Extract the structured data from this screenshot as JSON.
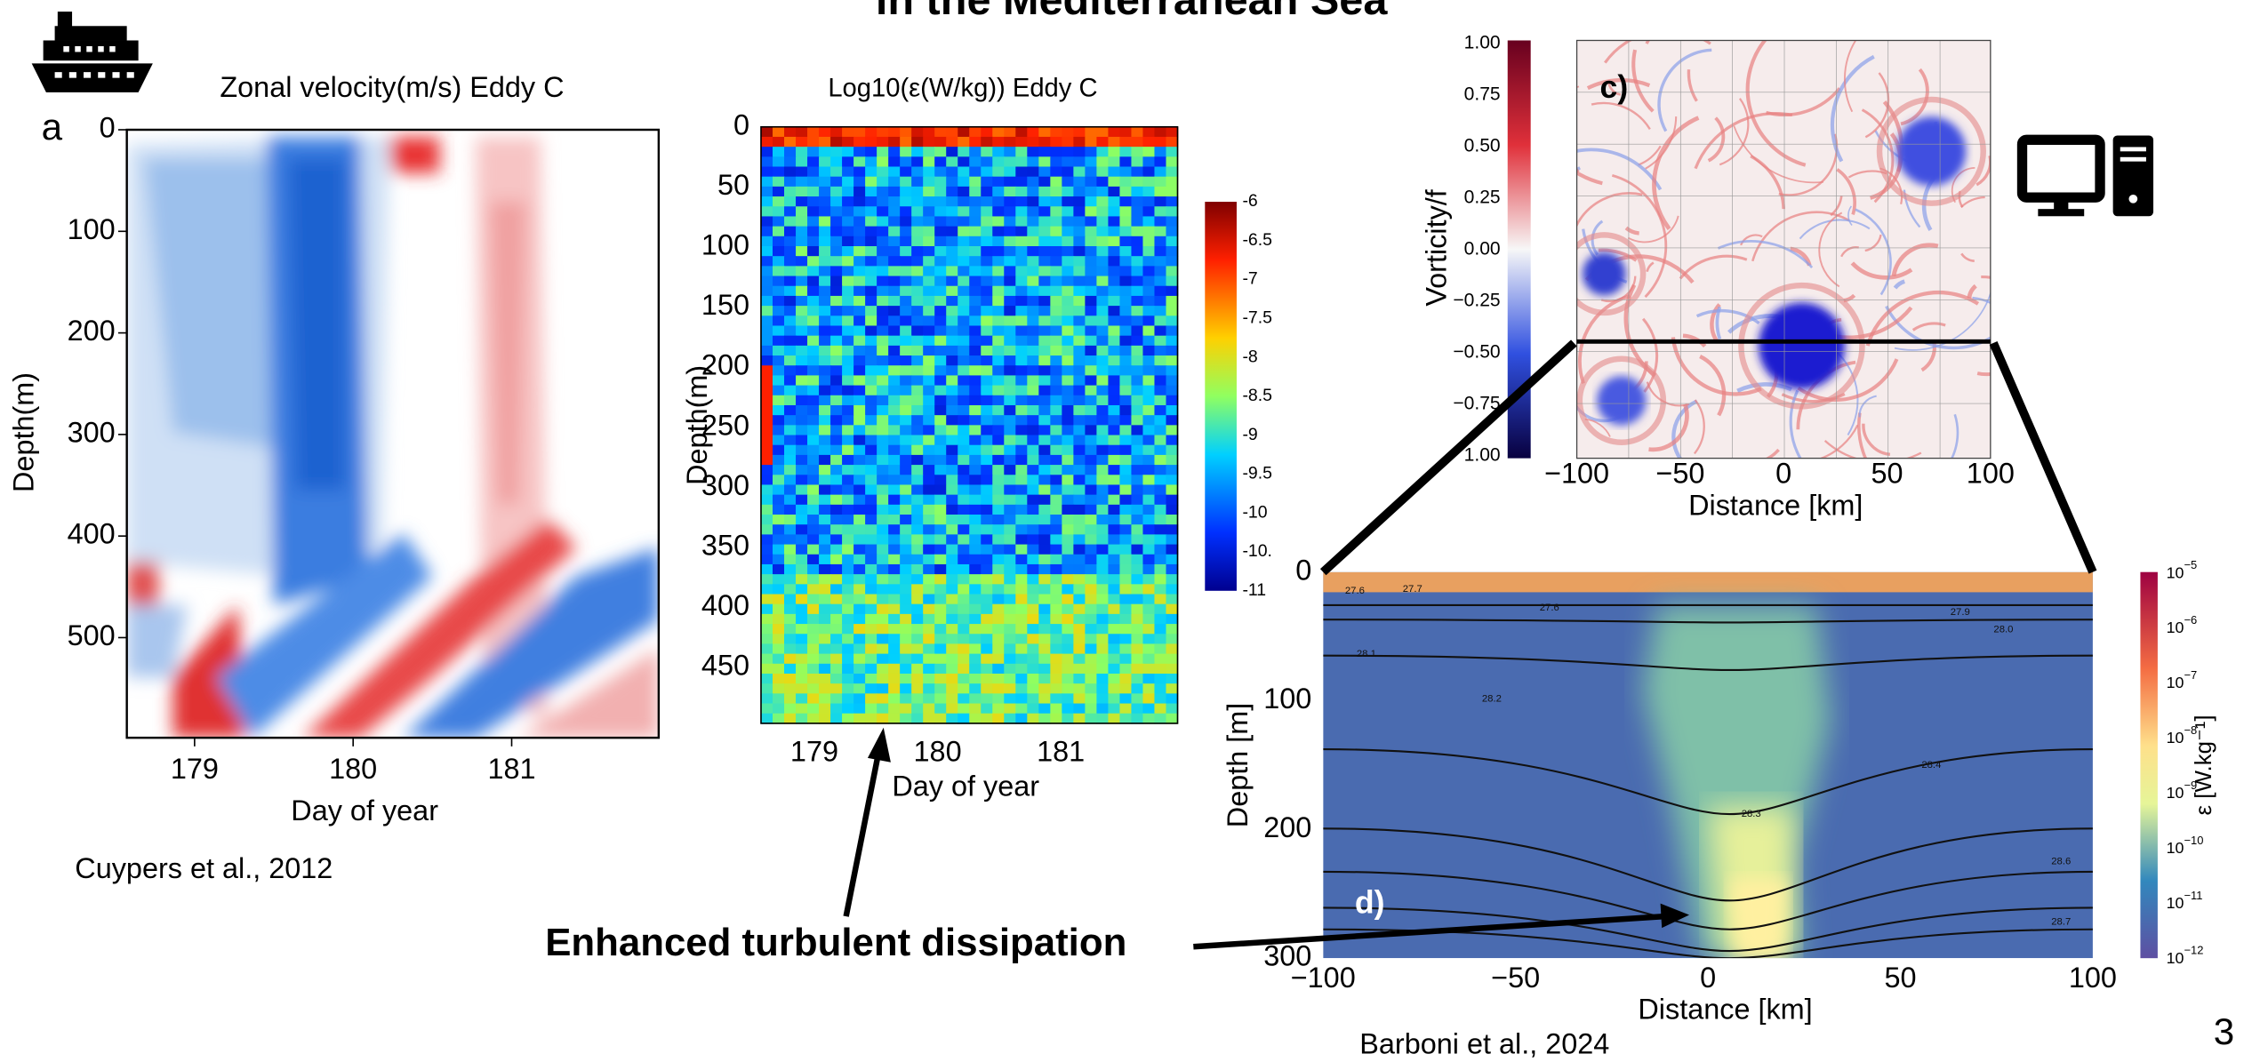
{
  "title": "in the Mediterranean Sea",
  "panel_a": {
    "label": "a",
    "title": "Zonal velocity(m/s) Eddy C",
    "y_label": "Depth(m)",
    "x_label": "Day of year",
    "y_ticks": [
      "0",
      "100",
      "200",
      "300",
      "400",
      "500"
    ],
    "x_ticks": [
      "179",
      "180",
      "181"
    ],
    "citation": "Cuypers et al., 2012"
  },
  "panel_b": {
    "title": "Log10(ε(W/kg)) Eddy C",
    "y_label": "Depth(m)",
    "x_label": "Day of year",
    "y_ticks": [
      "0",
      "50",
      "100",
      "150",
      "200",
      "250",
      "300",
      "350",
      "400",
      "450"
    ],
    "x_ticks": [
      "179",
      "180",
      "181"
    ],
    "colorbar_ticks": [
      "-6",
      "-6.5",
      "-7",
      "-7.5",
      "-8",
      "-8.5",
      "-9",
      "-9.5",
      "-10",
      "-10.",
      "-11"
    ]
  },
  "panel_c": {
    "label": "c)",
    "y_label": "Vorticity/f",
    "x_label": "Distance [km]",
    "colorbar_ticks": [
      "1.00",
      "0.75",
      "0.50",
      "0.25",
      "0.00",
      "−0.25",
      "−0.50",
      "−0.75",
      "1.00"
    ],
    "x_ticks": [
      "−100",
      "−50",
      "0",
      "50",
      "100"
    ]
  },
  "panel_d": {
    "label": "d)",
    "y_label": "Depth [m]",
    "x_label": "Distance [km]",
    "y_ticks": [
      "0",
      "100",
      "200",
      "300"
    ],
    "x_ticks": [
      "−100",
      "−50",
      "0",
      "50",
      "100"
    ],
    "colorbar_ticks": [
      {
        "base": "10",
        "exp": "−5"
      },
      {
        "base": "10",
        "exp": "−6"
      },
      {
        "base": "10",
        "exp": "−7"
      },
      {
        "base": "10",
        "exp": "−8"
      },
      {
        "base": "10",
        "exp": "−9"
      },
      {
        "base": "10",
        "exp": "−10"
      },
      {
        "base": "10",
        "exp": "−11"
      },
      {
        "base": "10",
        "exp": "−12"
      }
    ],
    "colorbar_label": "ε [W.kg⁻¹]",
    "contour_labels": [
      "27.6",
      "27.7",
      "27.6",
      "28.1",
      "28.2",
      "28.4",
      "28.3",
      "28.6",
      "28.7",
      "27.9",
      "28.0"
    ]
  },
  "callout": "Enhanced turbulent dissipation",
  "citation_d": "Barboni et al., 2024",
  "page_number": "3"
}
